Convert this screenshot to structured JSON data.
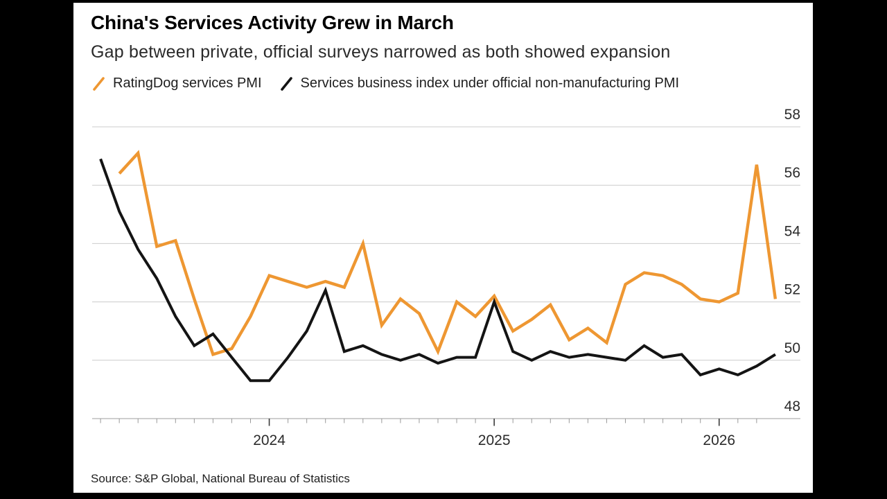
{
  "footer": {
    "source": "Source: S&P Global, National Bureau of Statistics"
  },
  "chart_data": {
    "type": "line",
    "title": "China's Services Activity Grew in March",
    "subtitle": "Gap between private, official surveys narrowed as both showed expansion",
    "source": "Source: S&P Global, National Bureau of Statistics",
    "x": [
      "Mar 2023",
      "Apr 2023",
      "May 2023",
      "Jun 2023",
      "Jul 2023",
      "Aug 2023",
      "Sep 2023",
      "Oct 2023",
      "Nov 2023",
      "Dec 2023",
      "Jan 2024",
      "Feb 2024",
      "Mar 2024",
      "Apr 2024",
      "May 2024",
      "Jun 2024",
      "Jul 2024",
      "Aug 2024",
      "Sep 2024",
      "Oct 2024",
      "Nov 2024",
      "Dec 2024",
      "Jan 2025",
      "Feb 2025",
      "Mar 2025",
      "Apr 2025",
      "May 2025",
      "Jun 2025",
      "Jul 2025",
      "Aug 2025",
      "Sep 2025",
      "Oct 2025",
      "Nov 2025",
      "Dec 2025",
      "Jan 2026",
      "Feb 2026",
      "Mar 2026"
    ],
    "x_tick_labels": [
      "2024",
      "2025",
      "2026"
    ],
    "ylim": [
      48,
      58
    ],
    "y_ticks": [
      58,
      56,
      54,
      52,
      50,
      48
    ],
    "grid": "horizontal-light",
    "legend_position": "top-left",
    "series": [
      {
        "name": "RatingDog services PMI",
        "color": "#EE9732",
        "start_month": "Apr 2023",
        "start_index": 1,
        "values": [
          56.4,
          57.1,
          53.9,
          54.1,
          52.1,
          50.2,
          50.4,
          51.5,
          52.9,
          52.7,
          52.5,
          52.7,
          52.5,
          54.0,
          51.2,
          52.1,
          51.6,
          50.3,
          52.0,
          51.5,
          52.2,
          51.0,
          51.4,
          51.9,
          50.7,
          51.1,
          50.6,
          52.6,
          53.0,
          52.9,
          52.6,
          52.1,
          52.0,
          52.3,
          56.7,
          52.1
        ]
      },
      {
        "name": "Services business index under official non-manufacturing PMI",
        "color": "#141414",
        "start_month": "Mar 2023",
        "start_index": 0,
        "values": [
          56.9,
          55.1,
          53.8,
          52.8,
          51.5,
          50.5,
          50.9,
          50.1,
          49.3,
          49.3,
          50.1,
          51.0,
          52.4,
          50.3,
          50.5,
          50.2,
          50.0,
          50.2,
          49.9,
          50.1,
          50.1,
          52.0,
          50.3,
          50.0,
          50.3,
          50.1,
          50.2,
          50.1,
          50.0,
          50.5,
          50.1,
          50.2,
          49.5,
          49.7,
          49.5,
          49.8,
          50.2
        ]
      }
    ]
  }
}
